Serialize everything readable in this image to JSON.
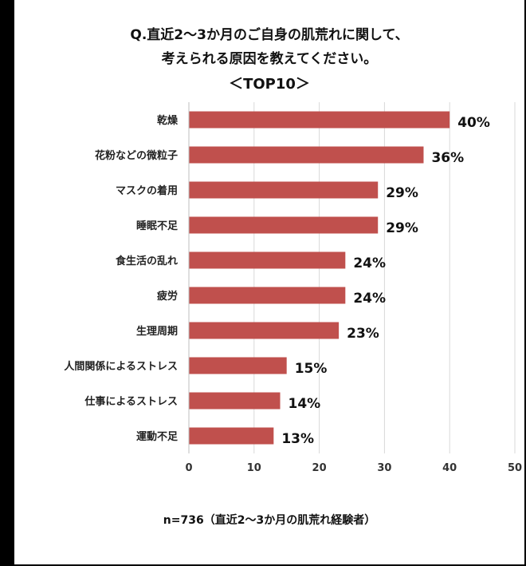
{
  "chart_data": {
    "type": "bar",
    "orientation": "horizontal",
    "title_lines": [
      "Q.直近2～3か月のご自身の肌荒れに関して、",
      "考えられる原因を教えてください。",
      "＜TOP10＞"
    ],
    "categories": [
      "乾燥",
      "花粉などの微粒子",
      "マスクの着用",
      "睡眠不足",
      "食生活の乱れ",
      "疲労",
      "生理周期",
      "人間関係によるストレス",
      "仕事によるストレス",
      "運動不足"
    ],
    "values": [
      40,
      36,
      29,
      29,
      24,
      24,
      23,
      15,
      14,
      13
    ],
    "data_labels": [
      "40%",
      "36%",
      "29%",
      "29%",
      "24%",
      "24%",
      "23%",
      "15%",
      "14%",
      "13%"
    ],
    "xlim": [
      0,
      50
    ],
    "x_ticks": [
      0,
      10,
      20,
      30,
      40,
      50
    ],
    "grid": true,
    "bar_color": "#C0504D",
    "footnote": "n=736（直近2～3か月の肌荒れ経験者）"
  }
}
